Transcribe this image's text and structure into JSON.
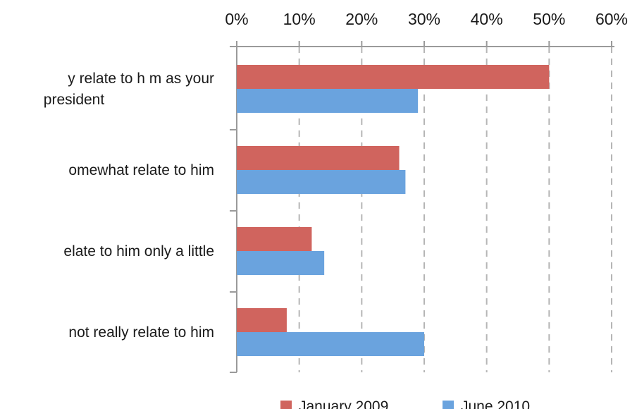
{
  "chart_data": {
    "type": "bar",
    "orientation": "horizontal",
    "categories": [
      [
        "y relate to h m as your",
        "president"
      ],
      [
        "omewhat relate to him"
      ],
      [
        "elate to him only a little"
      ],
      [
        "not really relate to him"
      ]
    ],
    "series": [
      {
        "name": "January 2009",
        "color": "#d0645e",
        "values": [
          50,
          26,
          12,
          8
        ]
      },
      {
        "name": "June 2010",
        "color": "#6aa3de",
        "values": [
          29,
          27,
          14,
          30
        ]
      }
    ],
    "xlim": [
      0,
      60
    ],
    "xticks": [
      "0%",
      "10%",
      "20%",
      "30%",
      "40%",
      "50%",
      "60%"
    ],
    "grid": "vertical-dashed",
    "axis_position": "top",
    "legend": "bottom"
  }
}
